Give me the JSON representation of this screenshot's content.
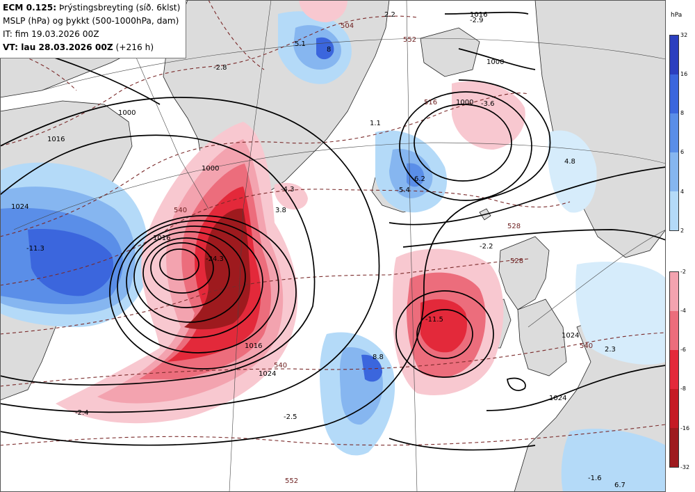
{
  "header": {
    "line1_bold": "ECM 0.125:",
    "line1_rest": " Þrýstingsbreyting (síð. 6klst)",
    "line2": "MSLP (hPa) og þykkt (500-1000hPa, dam)",
    "line3": "IT: fim 19.03.2026 00Z",
    "line4_bold": "VT: lau 28.03.2026 00Z",
    "line4_rest": " (+216 h)"
  },
  "legend": {
    "unit": "hPa",
    "rise_ticks": [
      "32",
      "16",
      "8",
      "6",
      "4",
      "2"
    ],
    "fall_ticks": [
      "-2",
      "-4",
      "-6",
      "-8",
      "-16",
      "-32"
    ],
    "rise_colors": [
      "#2b3fbf",
      "#3b66dd",
      "#5a8ee8",
      "#86b6f0",
      "#b4daf8",
      "#d6ecfb"
    ],
    "fall_colors": [
      "#f8c8d0",
      "#f3a3af",
      "#ec6d7c",
      "#e3293a",
      "#c51a24",
      "#9e1a1e"
    ]
  },
  "map": {
    "land_color": "#dcdcdc",
    "isobar_labels": [
      "1016",
      "1016",
      "1000",
      "1000",
      "1016",
      "1024",
      "1024",
      "1024",
      "1000",
      "1000",
      "1016",
      "1024"
    ],
    "thickness_labels": [
      "552",
      "528",
      "540",
      "540",
      "540",
      "552",
      "516",
      "504",
      "528"
    ],
    "change_labels": [
      "5.1",
      "8",
      "-2.8",
      "-3.6",
      "-2.9",
      "2.2",
      "4.8",
      "-11.3",
      "-24.3",
      "-4.3",
      "3.8",
      "6.2",
      "5.4",
      "-2.2",
      "-11.5",
      "8.8",
      "-2.4",
      "-2.5",
      "2.3",
      "6.7",
      "-1.6",
      "1.1"
    ]
  }
}
